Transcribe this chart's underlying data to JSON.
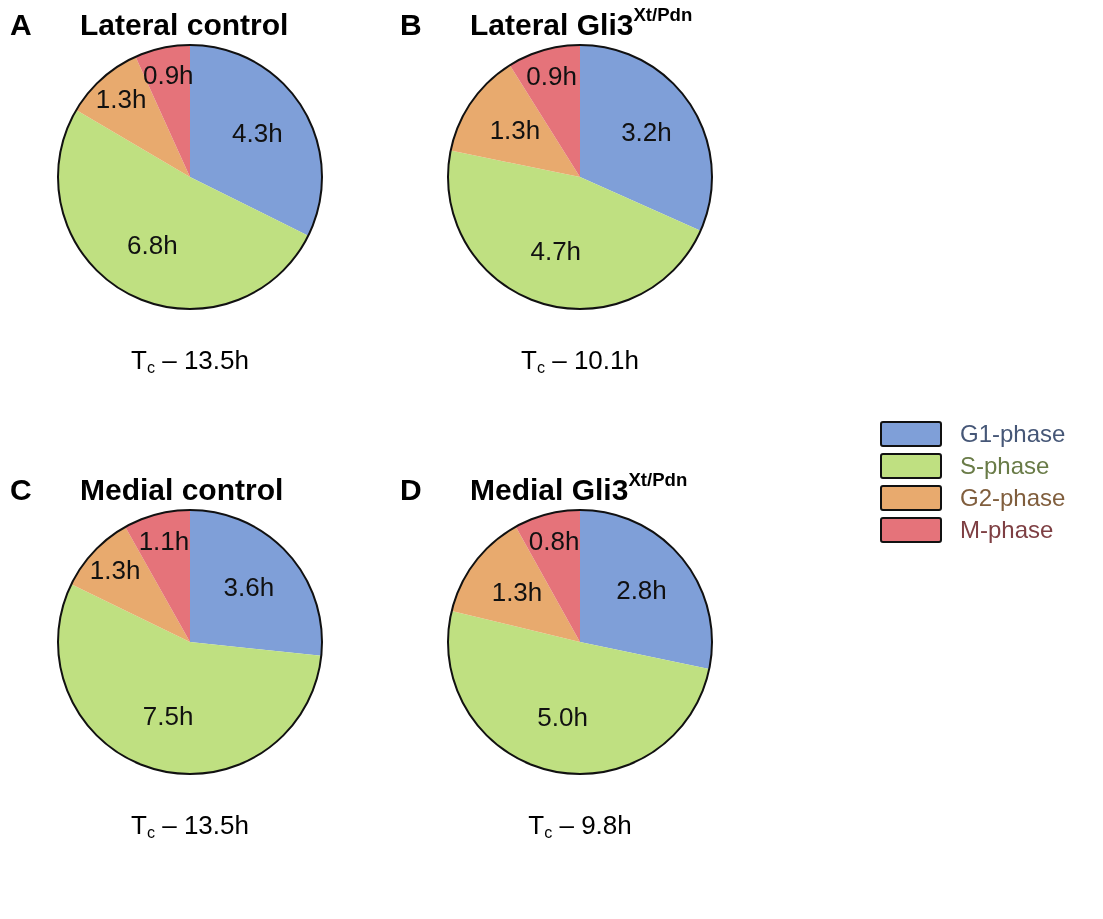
{
  "chart_data": [
    {
      "type": "pie",
      "title": "Lateral control",
      "annotations": [
        "A",
        "T$_{c}$ – 13.5h"
      ],
      "categories": [
        null,
        null,
        null,
        null
      ],
      "values": [
        4.3,
        6.8,
        1.3,
        0.9
      ],
      "colors": [
        "#7f9fd8",
        "#bfe081",
        "#e8aa6e",
        "#e5737a"
      ],
      "value_labels": [
        "4.3h",
        "6.8h",
        "1.3h",
        "0.9h"
      ]
    },
    {
      "type": "pie",
      "title": "Lateral Gli3$^{Xt/Pdn}$",
      "annotations": [
        "B",
        "T$_{c}$ – 10.1h"
      ],
      "categories": [
        "G1-phase",
        "S-phase",
        "G2-phase",
        "M-phase"
      ],
      "values": [
        3.2,
        4.7,
        1.3,
        0.9
      ],
      "colors": [
        "#7f9fd8",
        "#bfe081",
        "#e8aa6e",
        "#e5737a"
      ],
      "value_labels": [
        "3.2h",
        "4.7h",
        "1.3h",
        "0.9h"
      ],
      "legend": "right"
    },
    {
      "type": "pie",
      "title": "Medial control",
      "annotations": [
        "C",
        "T$_{c}$ – 13.5h"
      ],
      "categories": [
        null,
        null,
        null,
        null
      ],
      "values": [
        3.6,
        7.5,
        1.3,
        1.1
      ],
      "colors": [
        "#7f9fd8",
        "#bfe081",
        "#e8aa6e",
        "#e5737a"
      ],
      "value_labels": [
        "3.6h",
        "7.5h",
        "1.3h",
        "1.1h"
      ]
    },
    {
      "type": "pie",
      "title": "Medial Gli3$^{Xt/Pdn}$",
      "annotations": [
        "D",
        "T$_{c}$ – 9.8h"
      ],
      "categories": [
        null,
        null,
        null,
        null
      ],
      "values": [
        2.8,
        5.0,
        1.3,
        0.8
      ],
      "colors": [
        "#7f9fd8",
        "#bfe081",
        "#e8aa6e",
        "#e5737a"
      ],
      "value_labels": [
        "2.8h",
        "5.0h",
        "1.3h",
        "0.8h"
      ]
    }
  ]
}
